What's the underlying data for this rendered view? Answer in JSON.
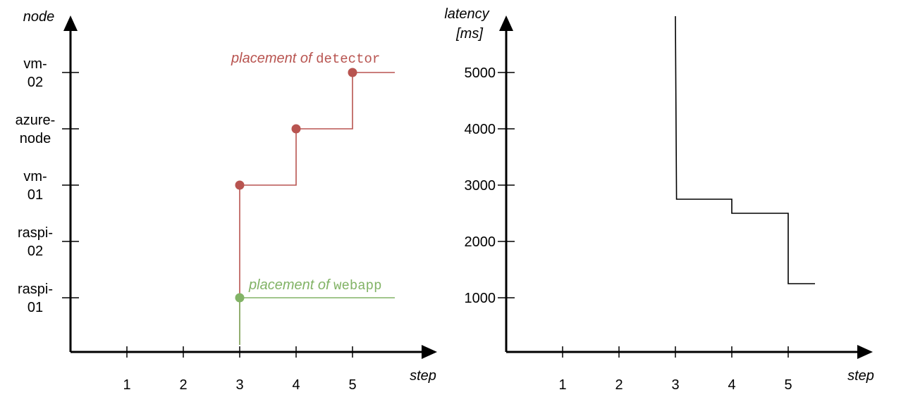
{
  "chart_data": [
    {
      "type": "line",
      "xlabel": "step",
      "ylabel": "node",
      "x_ticks": [
        1,
        2,
        3,
        4,
        5
      ],
      "y_categories": [
        {
          "line1": "raspi-",
          "line2": "01"
        },
        {
          "line1": "raspi-",
          "line2": "02"
        },
        {
          "line1": "vm-",
          "line2": "01"
        },
        {
          "line1": "azure-",
          "line2": "node"
        },
        {
          "line1": "vm-",
          "line2": "02"
        }
      ],
      "series": [
        {
          "name_prefix": "placement of ",
          "name_code": "detector",
          "color": "#b85450",
          "points": [
            {
              "step": 3,
              "node": "vm-01"
            },
            {
              "step": 4,
              "node": "azure-node"
            },
            {
              "step": 5,
              "node": "vm-02"
            }
          ],
          "extends_to_step": 6
        },
        {
          "name_prefix": "placement of ",
          "name_code": "webapp",
          "color": "#82b366",
          "points": [
            {
              "step": 3,
              "node": "raspi-01"
            }
          ],
          "extends_to_step": 6
        }
      ]
    },
    {
      "type": "line",
      "xlabel": "step",
      "ylabel_line1": "latency",
      "ylabel_line2": "[ms]",
      "x_ticks": [
        1,
        2,
        3,
        4,
        5
      ],
      "y_ticks": [
        "1000",
        "2000",
        "3000",
        "4000",
        "5000"
      ],
      "color": "#000000",
      "step_curve": [
        {
          "x": 3,
          "y": 6000
        },
        {
          "x": 3.02,
          "y": 2750
        },
        {
          "x": 4,
          "y": 2750
        },
        {
          "x": 4,
          "y": 2500
        },
        {
          "x": 5,
          "y": 2500
        },
        {
          "x": 5,
          "y": 1250
        },
        {
          "x": 6,
          "y": 1250
        }
      ]
    }
  ]
}
